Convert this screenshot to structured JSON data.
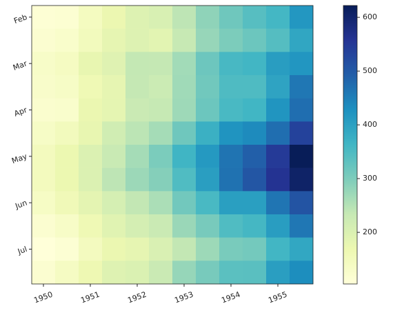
{
  "chart_data": {
    "type": "heatmap",
    "colormap": "YlGnBu",
    "z": [
      [
        112,
        115,
        145,
        171,
        196,
        204,
        242,
        284,
        315,
        340,
        360,
        417
      ],
      [
        118,
        126,
        150,
        180,
        196,
        188,
        233,
        277,
        301,
        318,
        342,
        391
      ],
      [
        132,
        141,
        178,
        193,
        236,
        235,
        267,
        317,
        356,
        362,
        406,
        419
      ],
      [
        129,
        135,
        163,
        181,
        235,
        227,
        269,
        313,
        348,
        348,
        396,
        461
      ],
      [
        121,
        125,
        172,
        183,
        229,
        234,
        270,
        318,
        355,
        363,
        420,
        472
      ],
      [
        135,
        149,
        178,
        218,
        243,
        264,
        315,
        374,
        422,
        435,
        472,
        535
      ],
      [
        148,
        170,
        199,
        230,
        264,
        302,
        364,
        413,
        465,
        491,
        548,
        622
      ],
      [
        148,
        170,
        199,
        242,
        272,
        293,
        347,
        405,
        467,
        505,
        559,
        606
      ],
      [
        136,
        158,
        184,
        209,
        237,
        259,
        312,
        355,
        404,
        404,
        463,
        508
      ],
      [
        119,
        133,
        162,
        191,
        211,
        229,
        274,
        306,
        347,
        359,
        407,
        461
      ],
      [
        104,
        114,
        146,
        172,
        180,
        203,
        237,
        271,
        305,
        310,
        362,
        390
      ],
      [
        118,
        140,
        166,
        194,
        201,
        229,
        278,
        306,
        336,
        337,
        405,
        432
      ]
    ],
    "xlim": [
      -0.5,
      11.5
    ],
    "ylim": [
      -0.5,
      11.5
    ],
    "xticks": [
      {
        "value": 0,
        "label": "1950"
      },
      {
        "value": 2,
        "label": "1951"
      },
      {
        "value": 4,
        "label": "1952"
      },
      {
        "value": 6,
        "label": "1953"
      },
      {
        "value": 8,
        "label": "1954"
      },
      {
        "value": 10,
        "label": "1955"
      }
    ],
    "yticks": [
      {
        "value": 0,
        "label": "Feb"
      },
      {
        "value": 2,
        "label": "Mar"
      },
      {
        "value": 4,
        "label": "Apr"
      },
      {
        "value": 6,
        "label": "May"
      },
      {
        "value": 8,
        "label": "Jun"
      },
      {
        "value": 10,
        "label": "Jul"
      }
    ],
    "clim": [
      104,
      622
    ],
    "cticks": [
      200,
      300,
      400,
      500,
      600
    ]
  }
}
